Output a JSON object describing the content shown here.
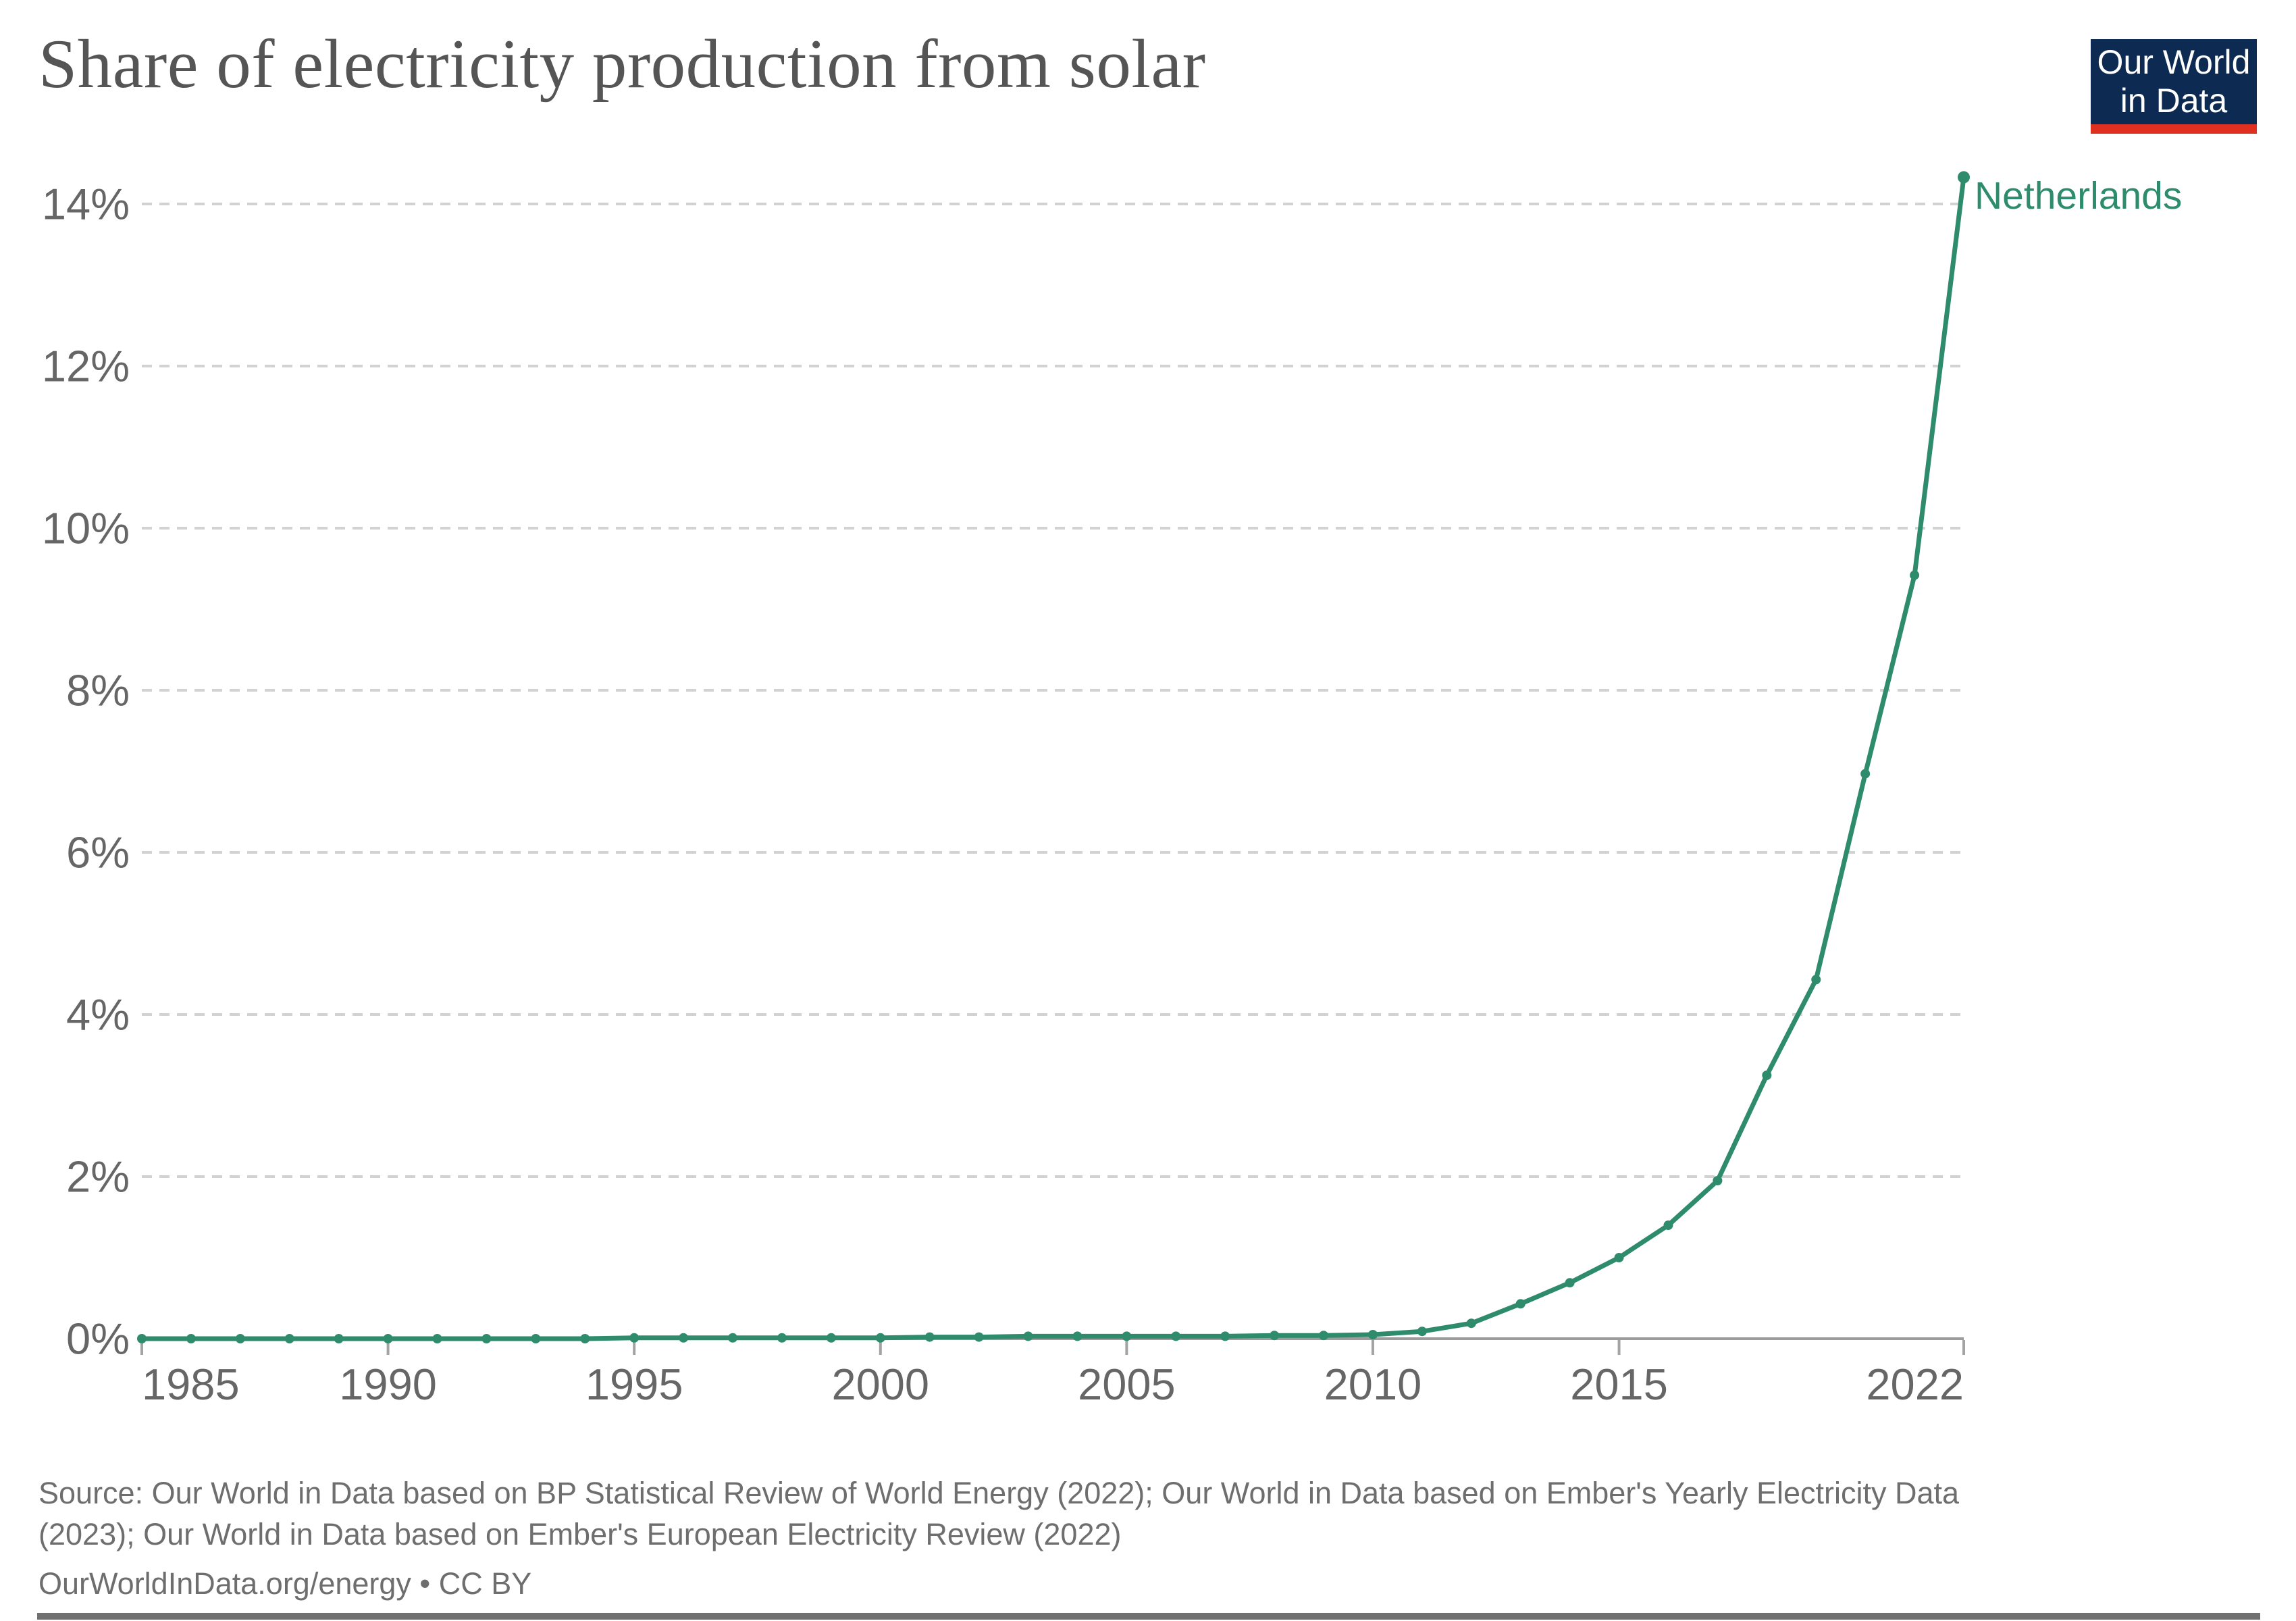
{
  "header": {
    "title": "Share of electricity production from solar",
    "logo": {
      "line1": "Our World",
      "line2": "in Data"
    }
  },
  "chart_data": {
    "type": "line",
    "title": "Share of electricity production from solar",
    "xlabel": "",
    "ylabel": "",
    "xlim": [
      1985,
      2022
    ],
    "ylim": [
      0,
      14.4
    ],
    "grid": "dashed-horizontal",
    "legend": "end-of-line-label",
    "xticks": [
      1985,
      1990,
      1995,
      2000,
      2005,
      2010,
      2015,
      2022
    ],
    "ytick_values": [
      0,
      2,
      4,
      6,
      8,
      10,
      12,
      14
    ],
    "ytick_labels": [
      "0%",
      "2%",
      "4%",
      "6%",
      "8%",
      "10%",
      "12%",
      "14%"
    ],
    "series": [
      {
        "name": "Netherlands",
        "color": "#2e8b6c",
        "x": [
          1985,
          1986,
          1987,
          1988,
          1989,
          1990,
          1991,
          1992,
          1993,
          1994,
          1995,
          1996,
          1997,
          1998,
          1999,
          2000,
          2001,
          2002,
          2003,
          2004,
          2005,
          2006,
          2007,
          2008,
          2009,
          2010,
          2011,
          2012,
          2013,
          2014,
          2015,
          2016,
          2017,
          2018,
          2019,
          2020,
          2021,
          2022
        ],
        "values": [
          0,
          0,
          0,
          0,
          0,
          0,
          0,
          0,
          0,
          0,
          0.01,
          0.01,
          0.01,
          0.01,
          0.01,
          0.01,
          0.02,
          0.02,
          0.03,
          0.03,
          0.03,
          0.03,
          0.03,
          0.04,
          0.04,
          0.05,
          0.09,
          0.19,
          0.43,
          0.69,
          1.0,
          1.4,
          1.95,
          3.25,
          4.43,
          6.97,
          9.42,
          14.33
        ]
      }
    ]
  },
  "footer": {
    "source_line1": "Source: Our World in Data based on BP Statistical Review of World Energy (2022); Our World in Data based on Ember's Yearly Electricity Data",
    "source_line2": "(2023); Our World in Data based on Ember's European Electricity Review (2022)",
    "source_line3": "OurWorldInData.org/energy • CC BY"
  },
  "colors": {
    "line": "#2e8b6c",
    "title": "#555555",
    "tick_label": "#666666",
    "gridline": "#d2d2d2",
    "axis": "#9c9c9c",
    "tick_mark": "#a3a3a3",
    "source_text": "#6e6e6e",
    "logo_bg": "#0c2a52",
    "logo_stripe": "#e0301f",
    "bottom_rule": "#707070"
  }
}
